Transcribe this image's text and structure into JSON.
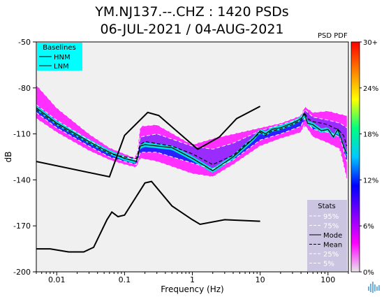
{
  "title_line1": "YM.NJ137.--.CHZ : 1420 PSDs",
  "title_line2": "06-JUL-2021 / 04-AUG-2021",
  "colorbar_label": "PSD PDF",
  "chart_data": {
    "type": "heatmap",
    "xlabel": "Frequency (Hz)",
    "ylabel": "dB",
    "xscale": "log",
    "xlim": [
      0.005,
      200
    ],
    "ylim": [
      -200,
      -50
    ],
    "x_ticks": [
      {
        "v": 0.01,
        "label": "0.01"
      },
      {
        "v": 0.1,
        "label": "0.1"
      },
      {
        "v": 1,
        "label": "1"
      },
      {
        "v": 10,
        "label": "10"
      },
      {
        "v": 100,
        "label": "100"
      }
    ],
    "y_ticks": [
      {
        "v": -50,
        "label": "-50"
      },
      {
        "v": -80,
        "label": "-80"
      },
      {
        "v": -110,
        "label": "-110"
      },
      {
        "v": -140,
        "label": "-140"
      },
      {
        "v": -170,
        "label": "-170"
      },
      {
        "v": -200,
        "label": "-200"
      }
    ],
    "colorbar": {
      "label": "PSD PDF",
      "ticks": [
        "30+",
        "24%",
        "18%",
        "12%",
        "6%",
        "0%"
      ],
      "colors": [
        "#e8e8e8",
        "#ff00ff",
        "#8000ff",
        "#0000ff",
        "#00c8ff",
        "#00ff80",
        "#ffff00",
        "#ff8000",
        "#ff0000"
      ]
    },
    "baselines_legend": {
      "title": "Baselines",
      "entries": [
        "HNM",
        "LNM"
      ]
    },
    "stats_legend": {
      "title": "Stats",
      "entries": [
        "95%",
        "75%",
        "Mode",
        "Mean",
        "25%",
        "5%"
      ]
    },
    "series": [
      {
        "name": "HNM",
        "x": [
          0.005,
          0.06,
          0.1,
          0.22,
          0.32,
          1.2,
          2.5,
          4.5,
          10
        ],
        "y": [
          -128,
          -138,
          -111,
          -96,
          -98,
          -120,
          -112,
          -100,
          -92
        ]
      },
      {
        "name": "LNM",
        "x": [
          0.005,
          0.008,
          0.015,
          0.025,
          0.035,
          0.055,
          0.065,
          0.08,
          0.1,
          0.2,
          0.25,
          0.5,
          1,
          1.3,
          3,
          10
        ],
        "y": [
          -185,
          -185,
          -187,
          -187,
          -184,
          -166,
          -161,
          -164,
          -163,
          -142,
          -141,
          -157,
          -166,
          -169,
          -166,
          -167
        ]
      },
      {
        "name": "Mode",
        "x": [
          0.005,
          0.01,
          0.03,
          0.06,
          0.1,
          0.15,
          0.17,
          0.2,
          0.5,
          1,
          2,
          4,
          6,
          8,
          10,
          12,
          15,
          20,
          30,
          40,
          45,
          50,
          60,
          80,
          100,
          120,
          140,
          170,
          190
        ],
        "y": [
          -93,
          -103,
          -115,
          -122,
          -126,
          -128,
          -118,
          -117,
          -119,
          -126,
          -134,
          -125,
          -118,
          -113,
          -108,
          -110,
          -107,
          -106,
          -103,
          -100,
          -97,
          -103,
          -104,
          -108,
          -107,
          -112,
          -107,
          -118,
          -123
        ]
      },
      {
        "name": "Mean",
        "x": [
          0.005,
          0.01,
          0.03,
          0.06,
          0.1,
          0.15,
          0.17,
          0.2,
          0.5,
          1,
          2,
          4,
          6,
          8,
          10,
          12,
          15,
          20,
          30,
          40,
          45,
          50,
          60,
          80,
          100,
          120,
          140,
          170,
          190
        ],
        "y": [
          -94,
          -104,
          -116,
          -123,
          -125,
          -126,
          -117,
          -115,
          -118,
          -123,
          -130,
          -124,
          -117,
          -113,
          -109,
          -111,
          -108,
          -107,
          -104,
          -101,
          -96,
          -100,
          -102,
          -103,
          -104,
          -106,
          -107,
          -111,
          -118
        ]
      },
      {
        "name": "95%",
        "x": [
          0.005,
          0.01,
          0.03,
          0.06,
          0.1,
          0.15,
          0.17,
          0.3,
          1,
          2,
          4,
          10,
          20,
          40,
          45,
          60,
          100,
          150,
          190
        ],
        "y": [
          -78,
          -93,
          -110,
          -119,
          -123,
          -126,
          -105,
          -104,
          -117,
          -113,
          -110,
          -106,
          -103,
          -98,
          -92,
          -96,
          -95,
          -97,
          -98
        ]
      },
      {
        "name": "75%",
        "x": [
          0.005,
          0.01,
          0.03,
          0.06,
          0.1,
          0.15,
          0.17,
          0.3,
          1,
          2,
          4,
          10,
          20,
          40,
          45,
          60,
          100,
          150,
          190
        ],
        "y": [
          -91,
          -101,
          -114,
          -122,
          -125,
          -127,
          -112,
          -110,
          -118,
          -120,
          -116,
          -108,
          -104,
          -100,
          -94,
          -99,
          -101,
          -103,
          -106
        ]
      },
      {
        "name": "25%",
        "x": [
          0.005,
          0.01,
          0.03,
          0.06,
          0.1,
          0.15,
          0.17,
          0.3,
          1,
          2,
          4,
          10,
          20,
          40,
          45,
          60,
          100,
          150,
          190
        ],
        "y": [
          -96,
          -106,
          -118,
          -125,
          -128,
          -130,
          -122,
          -122,
          -129,
          -133,
          -127,
          -114,
          -110,
          -105,
          -100,
          -107,
          -109,
          -112,
          -128
        ]
      },
      {
        "name": "5%",
        "x": [
          0.005,
          0.01,
          0.03,
          0.06,
          0.1,
          0.15,
          0.17,
          0.3,
          1,
          2,
          4,
          10,
          20,
          40,
          45,
          60,
          100,
          150,
          190
        ],
        "y": [
          -100,
          -109,
          -121,
          -127,
          -130,
          -132,
          -126,
          -128,
          -136,
          -138,
          -130,
          -118,
          -113,
          -109,
          -104,
          -112,
          -116,
          -120,
          -140
        ]
      }
    ]
  }
}
